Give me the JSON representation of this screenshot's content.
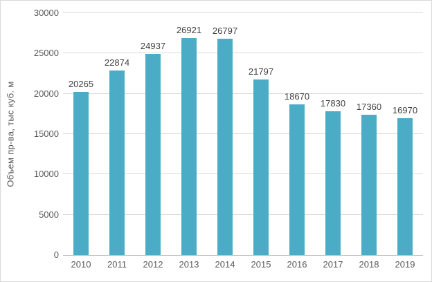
{
  "chart_data": {
    "type": "bar",
    "title": "",
    "xlabel": "",
    "ylabel": "Объем пр-ва, тыс куб. м",
    "categories": [
      "2010",
      "2011",
      "2012",
      "2013",
      "2014",
      "2015",
      "2016",
      "2017",
      "2018",
      "2019"
    ],
    "values": [
      20265,
      22874,
      24937,
      26921,
      26797,
      21797,
      18670,
      17830,
      17360,
      16970
    ],
    "data_labels": [
      "20265",
      "22874",
      "24937",
      "26921",
      "26797",
      "21797",
      "18670",
      "17830",
      "17360",
      "16970"
    ],
    "ylim": [
      0,
      30000
    ],
    "yticks": [
      0,
      5000,
      10000,
      15000,
      20000,
      25000,
      30000
    ],
    "grid": true,
    "legend_position": "none",
    "colors": {
      "bar": "#4bacc6",
      "gridline": "#d9d9d9",
      "axis_line": "#bfbfbf",
      "tick_text": "#595959",
      "data_label_text": "#404040",
      "frame_border": "#d9d9d9",
      "background": "#ffffff"
    }
  }
}
